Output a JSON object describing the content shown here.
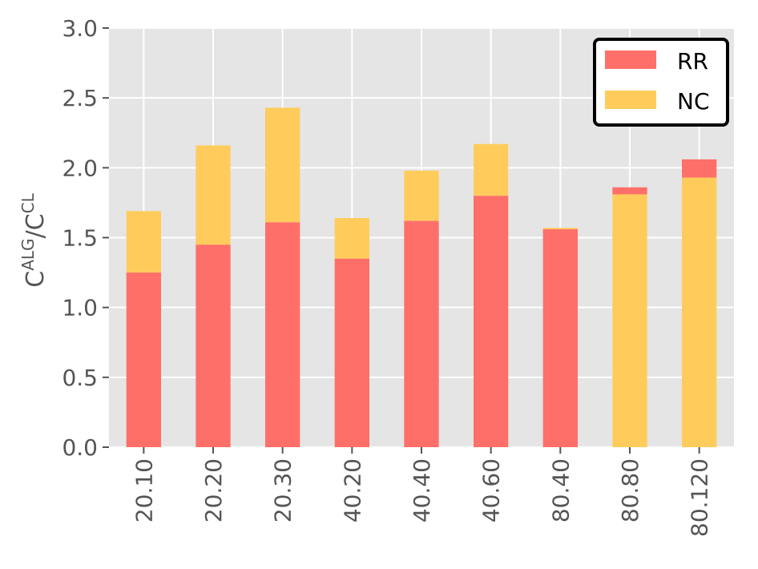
{
  "chart_data": {
    "type": "bar",
    "stacked": true,
    "categories": [
      "20.10",
      "20.20",
      "20.30",
      "40.20",
      "40.40",
      "40.60",
      "80.40",
      "80.80",
      "80.120"
    ],
    "series": [
      {
        "name": "RR",
        "color": "#ff6f69",
        "values": [
          1.25,
          1.45,
          1.61,
          1.35,
          1.62,
          1.8,
          1.56,
          0.05,
          0.13
        ]
      },
      {
        "name": "NC",
        "color": "#ffcc5c",
        "values": [
          0.44,
          0.71,
          0.82,
          0.29,
          0.36,
          0.37,
          0.01,
          1.81,
          1.93
        ]
      }
    ],
    "stack_order_bottom_first": [
      [
        "RR",
        "NC"
      ],
      [
        "RR",
        "NC"
      ],
      [
        "RR",
        "NC"
      ],
      [
        "RR",
        "NC"
      ],
      [
        "RR",
        "NC"
      ],
      [
        "RR",
        "NC"
      ],
      [
        "RR",
        "NC"
      ],
      [
        "NC",
        "RR"
      ],
      [
        "NC",
        "RR"
      ]
    ],
    "ylabel_main": "C",
    "ylabel_sup1": "ALG",
    "ylabel_sep": "/C",
    "ylabel_sup2": "CL",
    "ylim": [
      0,
      3.0
    ],
    "yticks": [
      "0.0",
      "0.5",
      "1.0",
      "1.5",
      "2.0",
      "2.5",
      "3.0"
    ],
    "ytick_values": [
      0,
      0.5,
      1.0,
      1.5,
      2.0,
      2.5,
      3.0
    ],
    "grid": true,
    "legend_position": "top-right",
    "plot_background": "#e5e5e5"
  }
}
